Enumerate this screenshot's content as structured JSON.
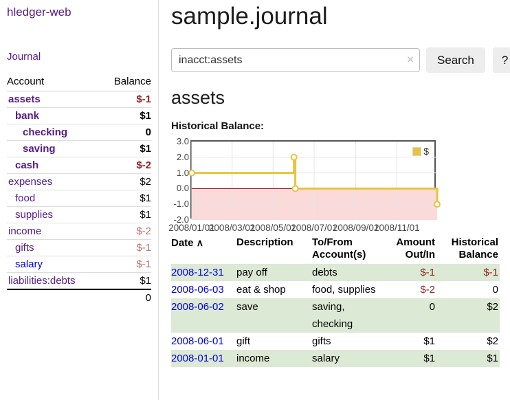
{
  "app": {
    "brand": "hledger-web",
    "nav_journal": "Journal"
  },
  "sidebar": {
    "header": {
      "account": "Account",
      "balance": "Balance"
    },
    "accounts": [
      {
        "name": "assets",
        "balance": "$-1",
        "indent": 0,
        "bold": true,
        "balance_style": "negative-strong"
      },
      {
        "name": "bank",
        "balance": "$1",
        "indent": 1,
        "bold": true,
        "balance_style": "normal"
      },
      {
        "name": "checking",
        "balance": "0",
        "indent": 2,
        "bold": true,
        "balance_style": "normal"
      },
      {
        "name": "saving",
        "balance": "$1",
        "indent": 2,
        "bold": true,
        "balance_style": "normal"
      },
      {
        "name": "cash",
        "balance": "$-2",
        "indent": 1,
        "bold": true,
        "balance_style": "negative-strong"
      },
      {
        "name": "expenses",
        "balance": "$2",
        "indent": 0,
        "bold": false,
        "balance_style": "normal"
      },
      {
        "name": "food",
        "balance": "$1",
        "indent": 1,
        "bold": false,
        "balance_style": "normal"
      },
      {
        "name": "supplies",
        "balance": "$1",
        "indent": 1,
        "bold": false,
        "balance_style": "normal"
      },
      {
        "name": "income",
        "balance": "$-2",
        "indent": 0,
        "bold": false,
        "balance_style": "negative-light"
      },
      {
        "name": "gifts",
        "balance": "$-1",
        "indent": 1,
        "bold": false,
        "balance_style": "negative-light"
      },
      {
        "name": "salary",
        "balance": "$-1",
        "indent": 1,
        "bold": false,
        "balance_style": "negative-light",
        "link_color": "blue"
      },
      {
        "name": "liabilities:debts",
        "balance": "$1",
        "indent": 0,
        "bold": false,
        "balance_style": "normal"
      }
    ],
    "total": "0"
  },
  "main": {
    "title": "sample.journal",
    "search": {
      "value": "inacct:assets",
      "clear_icon": "×",
      "search_label": "Search",
      "help_label": "?"
    },
    "account_heading": "assets",
    "chart_label": "Historical Balance:"
  },
  "chart_data": {
    "type": "line",
    "step": true,
    "title": "Historical Balance:",
    "series": [
      {
        "name": "$",
        "color": "#e8c33f",
        "points": [
          [
            "2008-01-01",
            1
          ],
          [
            "2008-06-01",
            2
          ],
          [
            "2008-06-03",
            0
          ],
          [
            "2008-12-31",
            -1
          ]
        ]
      }
    ],
    "x_range": [
      "2008-01-01",
      "2008-12-31"
    ],
    "x_ticks": [
      {
        "date": "2008-01-01",
        "label": "2008/01/01"
      },
      {
        "date": "2008-03-01",
        "label": "2008/03/01"
      },
      {
        "date": "2008-05-01",
        "label": "2008/05/01"
      },
      {
        "date": "2008-07-01",
        "label": "2008/07/01"
      },
      {
        "date": "2008-09-01",
        "label": "2008/09/01"
      },
      {
        "date": "2008-11-01",
        "label": "2008/11/01"
      }
    ],
    "y_ticks": [
      3.0,
      2.0,
      1.0,
      0.0,
      -1.0,
      -2.0
    ],
    "ylim": [
      -2,
      3
    ],
    "grid": true,
    "legend": "$",
    "legend_position": "top-right",
    "negative_fill": "#fbdada",
    "zero_line_color": "#8b0000",
    "grid_color": "#e5e5e5",
    "border_color": "#545454"
  },
  "register": {
    "headers": {
      "date": "Date",
      "sort": "∧",
      "description": "Description",
      "account_line1": "To/From",
      "account_line2": "Account(s)",
      "amount_line1": "Amount",
      "amount_line2": "Out/In",
      "balance_line1": "Historical",
      "balance_line2": "Balance"
    },
    "rows": [
      {
        "date": "2008-12-31",
        "description": "pay off",
        "accounts": "debts",
        "amount": "$-1",
        "balance": "$-1",
        "amount_negative": true,
        "balance_negative": true
      },
      {
        "date": "2008-06-03",
        "description": "eat & shop",
        "accounts": "food, supplies",
        "amount": "$-2",
        "balance": "0",
        "amount_negative": true,
        "balance_negative": false
      },
      {
        "date": "2008-06-02",
        "description": "save",
        "accounts": "saving, checking",
        "amount": "0",
        "balance": "$2",
        "amount_negative": false,
        "balance_negative": false
      },
      {
        "date": "2008-06-01",
        "description": "gift",
        "accounts": "gifts",
        "amount": "$1",
        "balance": "$2",
        "amount_negative": false,
        "balance_negative": false
      },
      {
        "date": "2008-01-01",
        "description": "income",
        "accounts": "salary",
        "amount": "$1",
        "balance": "$1",
        "amount_negative": false,
        "balance_negative": false
      }
    ]
  },
  "colors": {
    "link_purple": "#551a8b",
    "link_blue": "#0000e6",
    "negative_strong": "#941f1f",
    "negative_light": "#bf6f78",
    "row_green": "#dce9d4",
    "chart_line_gold": "#e8c33f",
    "chart_negative_fill": "#fbdada",
    "chart_zero_line": "#8b0000",
    "button_bg": "#ededed"
  }
}
